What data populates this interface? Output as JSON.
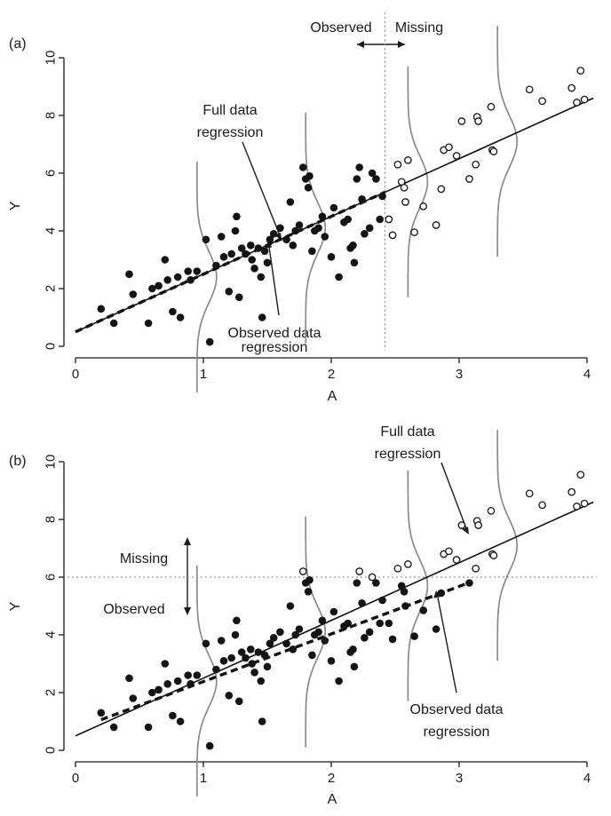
{
  "chart_data": [
    {
      "panel": "(a)",
      "type": "scatter",
      "xlabel": "A",
      "ylabel": "Y",
      "xlim": [
        0,
        4
      ],
      "ylim": [
        0,
        10
      ],
      "xticks": [
        0,
        1,
        2,
        3,
        4
      ],
      "yticks": [
        0,
        2,
        4,
        6,
        8,
        10
      ],
      "missingness": "missing when A > 2.42 (vertical cut)",
      "cutoff_A": 2.42,
      "legend_labels": {
        "left": "Observed",
        "right": "Missing"
      },
      "full_regression": {
        "intercept": 0.5,
        "slope": 2.0
      },
      "observed_regression": {
        "intercept": 0.5,
        "slope": 2.0,
        "x_range": [
          0,
          2.42
        ]
      },
      "density_curves_at_A": [
        0.95,
        1.8,
        2.6,
        3.3
      ],
      "annotations": [
        {
          "text_lines": [
            "Full data",
            "regression"
          ],
          "points_to": "full-regression"
        },
        {
          "text_lines": [
            "Observed data",
            "regression"
          ],
          "points_to": "observed-regression"
        }
      ],
      "points": [
        {
          "x": 0.2,
          "y": 1.3,
          "observed": true
        },
        {
          "x": 0.3,
          "y": 0.8,
          "observed": true
        },
        {
          "x": 0.42,
          "y": 2.5,
          "observed": true
        },
        {
          "x": 0.45,
          "y": 1.8,
          "observed": true
        },
        {
          "x": 0.57,
          "y": 0.8,
          "observed": true
        },
        {
          "x": 0.6,
          "y": 2.0,
          "observed": true
        },
        {
          "x": 0.65,
          "y": 2.1,
          "observed": true
        },
        {
          "x": 0.7,
          "y": 3.0,
          "observed": true
        },
        {
          "x": 0.72,
          "y": 2.3,
          "observed": true
        },
        {
          "x": 0.76,
          "y": 1.2,
          "observed": true
        },
        {
          "x": 0.8,
          "y": 2.4,
          "observed": true
        },
        {
          "x": 0.82,
          "y": 1.0,
          "observed": true
        },
        {
          "x": 0.88,
          "y": 2.6,
          "observed": true
        },
        {
          "x": 0.9,
          "y": 2.3,
          "observed": true
        },
        {
          "x": 0.95,
          "y": 2.6,
          "observed": true
        },
        {
          "x": 1.02,
          "y": 3.7,
          "observed": true
        },
        {
          "x": 1.05,
          "y": 0.15,
          "observed": true
        },
        {
          "x": 1.1,
          "y": 2.8,
          "observed": true
        },
        {
          "x": 1.14,
          "y": 3.8,
          "observed": true
        },
        {
          "x": 1.16,
          "y": 3.1,
          "observed": true
        },
        {
          "x": 1.2,
          "y": 1.9,
          "observed": true
        },
        {
          "x": 1.22,
          "y": 3.2,
          "observed": true
        },
        {
          "x": 1.25,
          "y": 4.0,
          "observed": true
        },
        {
          "x": 1.26,
          "y": 4.5,
          "observed": true
        },
        {
          "x": 1.28,
          "y": 1.7,
          "observed": true
        },
        {
          "x": 1.3,
          "y": 3.4,
          "observed": true
        },
        {
          "x": 1.33,
          "y": 3.2,
          "observed": true
        },
        {
          "x": 1.37,
          "y": 3.5,
          "observed": true
        },
        {
          "x": 1.38,
          "y": 3.0,
          "observed": true
        },
        {
          "x": 1.4,
          "y": 2.7,
          "observed": true
        },
        {
          "x": 1.43,
          "y": 3.4,
          "observed": true
        },
        {
          "x": 1.45,
          "y": 2.4,
          "observed": true
        },
        {
          "x": 1.46,
          "y": 1.0,
          "observed": true
        },
        {
          "x": 1.48,
          "y": 3.3,
          "observed": true
        },
        {
          "x": 1.5,
          "y": 2.9,
          "observed": true
        },
        {
          "x": 1.52,
          "y": 3.7,
          "observed": true
        },
        {
          "x": 1.55,
          "y": 3.9,
          "observed": true
        },
        {
          "x": 1.6,
          "y": 4.1,
          "observed": true
        },
        {
          "x": 1.65,
          "y": 3.7,
          "observed": true
        },
        {
          "x": 1.68,
          "y": 5.0,
          "observed": true
        },
        {
          "x": 1.7,
          "y": 3.5,
          "observed": true
        },
        {
          "x": 1.72,
          "y": 4.0,
          "observed": true
        },
        {
          "x": 1.75,
          "y": 4.2,
          "observed": true
        },
        {
          "x": 1.78,
          "y": 6.2,
          "observed": true
        },
        {
          "x": 1.8,
          "y": 5.8,
          "observed": true
        },
        {
          "x": 1.82,
          "y": 5.5,
          "observed": true
        },
        {
          "x": 1.83,
          "y": 5.9,
          "observed": true
        },
        {
          "x": 1.85,
          "y": 3.3,
          "observed": true
        },
        {
          "x": 1.87,
          "y": 4.0,
          "observed": true
        },
        {
          "x": 1.9,
          "y": 4.1,
          "observed": true
        },
        {
          "x": 1.93,
          "y": 4.5,
          "observed": true
        },
        {
          "x": 1.95,
          "y": 3.8,
          "observed": true
        },
        {
          "x": 2.0,
          "y": 3.1,
          "observed": true
        },
        {
          "x": 2.02,
          "y": 4.8,
          "observed": true
        },
        {
          "x": 2.06,
          "y": 2.4,
          "observed": true
        },
        {
          "x": 2.1,
          "y": 4.3,
          "observed": true
        },
        {
          "x": 2.13,
          "y": 4.4,
          "observed": true
        },
        {
          "x": 2.15,
          "y": 3.4,
          "observed": true
        },
        {
          "x": 2.17,
          "y": 3.5,
          "observed": true
        },
        {
          "x": 2.18,
          "y": 2.9,
          "observed": true
        },
        {
          "x": 2.2,
          "y": 5.8,
          "observed": true
        },
        {
          "x": 2.22,
          "y": 6.2,
          "observed": true
        },
        {
          "x": 2.24,
          "y": 5.1,
          "observed": true
        },
        {
          "x": 2.26,
          "y": 3.9,
          "observed": true
        },
        {
          "x": 2.3,
          "y": 4.1,
          "observed": true
        },
        {
          "x": 2.32,
          "y": 6.0,
          "observed": true
        },
        {
          "x": 2.35,
          "y": 5.8,
          "observed": true
        },
        {
          "x": 2.38,
          "y": 4.4,
          "observed": true
        },
        {
          "x": 2.4,
          "y": 5.2,
          "observed": true
        },
        {
          "x": 2.45,
          "y": 4.4,
          "observed": false
        },
        {
          "x": 2.48,
          "y": 3.85,
          "observed": false
        },
        {
          "x": 2.52,
          "y": 6.3,
          "observed": false
        },
        {
          "x": 2.55,
          "y": 5.7,
          "observed": false
        },
        {
          "x": 2.57,
          "y": 5.5,
          "observed": false
        },
        {
          "x": 2.58,
          "y": 5.0,
          "observed": false
        },
        {
          "x": 2.6,
          "y": 6.45,
          "observed": false
        },
        {
          "x": 2.65,
          "y": 3.95,
          "observed": false
        },
        {
          "x": 2.72,
          "y": 4.85,
          "observed": false
        },
        {
          "x": 2.82,
          "y": 4.2,
          "observed": false
        },
        {
          "x": 2.86,
          "y": 5.45,
          "observed": false
        },
        {
          "x": 2.88,
          "y": 6.8,
          "observed": false
        },
        {
          "x": 2.92,
          "y": 6.9,
          "observed": false
        },
        {
          "x": 2.98,
          "y": 6.6,
          "observed": false
        },
        {
          "x": 3.02,
          "y": 7.8,
          "observed": false
        },
        {
          "x": 3.08,
          "y": 5.8,
          "observed": false
        },
        {
          "x": 3.13,
          "y": 6.3,
          "observed": false
        },
        {
          "x": 3.14,
          "y": 7.95,
          "observed": false
        },
        {
          "x": 3.15,
          "y": 7.8,
          "observed": false
        },
        {
          "x": 3.25,
          "y": 8.3,
          "observed": false
        },
        {
          "x": 3.26,
          "y": 6.8,
          "observed": false
        },
        {
          "x": 3.27,
          "y": 6.75,
          "observed": false
        },
        {
          "x": 3.55,
          "y": 8.9,
          "observed": false
        },
        {
          "x": 3.65,
          "y": 8.5,
          "observed": false
        },
        {
          "x": 3.88,
          "y": 8.95,
          "observed": false
        },
        {
          "x": 3.92,
          "y": 8.45,
          "observed": false
        },
        {
          "x": 3.95,
          "y": 9.55,
          "observed": false
        },
        {
          "x": 3.98,
          "y": 8.55,
          "observed": false
        }
      ]
    },
    {
      "panel": "(b)",
      "type": "scatter",
      "xlabel": "A",
      "ylabel": "Y",
      "xlim": [
        0,
        4
      ],
      "ylim": [
        0,
        10
      ],
      "xticks": [
        0,
        1,
        2,
        3,
        4
      ],
      "yticks": [
        0,
        2,
        4,
        6,
        8,
        10
      ],
      "missingness": "missing when Y > 6 (horizontal cut)",
      "cutoff_Y": 6.0,
      "legend_labels": {
        "top": "Missing",
        "bottom": "Observed"
      },
      "full_regression": {
        "intercept": 0.5,
        "slope": 2.0
      },
      "observed_regression": {
        "intercept": 0.73,
        "slope": 1.65,
        "x_range": [
          0.2,
          3.1
        ]
      },
      "density_curves_at_A": [
        0.95,
        1.8,
        2.6,
        3.3
      ],
      "annotations": [
        {
          "text_lines": [
            "Full data",
            "regression"
          ],
          "points_to": "full-regression"
        },
        {
          "text_lines": [
            "Observed data",
            "regression"
          ],
          "points_to": "observed-regression"
        }
      ],
      "points": [
        {
          "x": 0.2,
          "y": 1.3,
          "observed": true
        },
        {
          "x": 0.3,
          "y": 0.8,
          "observed": true
        },
        {
          "x": 0.42,
          "y": 2.5,
          "observed": true
        },
        {
          "x": 0.45,
          "y": 1.8,
          "observed": true
        },
        {
          "x": 0.57,
          "y": 0.8,
          "observed": true
        },
        {
          "x": 0.6,
          "y": 2.0,
          "observed": true
        },
        {
          "x": 0.65,
          "y": 2.1,
          "observed": true
        },
        {
          "x": 0.7,
          "y": 3.0,
          "observed": true
        },
        {
          "x": 0.72,
          "y": 2.3,
          "observed": true
        },
        {
          "x": 0.76,
          "y": 1.2,
          "observed": true
        },
        {
          "x": 0.8,
          "y": 2.4,
          "observed": true
        },
        {
          "x": 0.82,
          "y": 1.0,
          "observed": true
        },
        {
          "x": 0.88,
          "y": 2.6,
          "observed": true
        },
        {
          "x": 0.9,
          "y": 2.3,
          "observed": true
        },
        {
          "x": 0.95,
          "y": 2.6,
          "observed": true
        },
        {
          "x": 1.02,
          "y": 3.7,
          "observed": true
        },
        {
          "x": 1.05,
          "y": 0.15,
          "observed": true
        },
        {
          "x": 1.1,
          "y": 2.8,
          "observed": true
        },
        {
          "x": 1.14,
          "y": 3.8,
          "observed": true
        },
        {
          "x": 1.16,
          "y": 3.1,
          "observed": true
        },
        {
          "x": 1.2,
          "y": 1.9,
          "observed": true
        },
        {
          "x": 1.22,
          "y": 3.2,
          "observed": true
        },
        {
          "x": 1.25,
          "y": 4.0,
          "observed": true
        },
        {
          "x": 1.26,
          "y": 4.5,
          "observed": true
        },
        {
          "x": 1.28,
          "y": 1.7,
          "observed": true
        },
        {
          "x": 1.3,
          "y": 3.4,
          "observed": true
        },
        {
          "x": 1.33,
          "y": 3.2,
          "observed": true
        },
        {
          "x": 1.37,
          "y": 3.5,
          "observed": true
        },
        {
          "x": 1.38,
          "y": 3.0,
          "observed": true
        },
        {
          "x": 1.4,
          "y": 2.7,
          "observed": true
        },
        {
          "x": 1.43,
          "y": 3.4,
          "observed": true
        },
        {
          "x": 1.45,
          "y": 2.4,
          "observed": true
        },
        {
          "x": 1.46,
          "y": 1.0,
          "observed": true
        },
        {
          "x": 1.48,
          "y": 3.3,
          "observed": true
        },
        {
          "x": 1.5,
          "y": 2.9,
          "observed": true
        },
        {
          "x": 1.52,
          "y": 3.7,
          "observed": true
        },
        {
          "x": 1.55,
          "y": 3.9,
          "observed": true
        },
        {
          "x": 1.6,
          "y": 4.1,
          "observed": true
        },
        {
          "x": 1.65,
          "y": 3.7,
          "observed": true
        },
        {
          "x": 1.68,
          "y": 5.0,
          "observed": true
        },
        {
          "x": 1.7,
          "y": 3.5,
          "observed": true
        },
        {
          "x": 1.72,
          "y": 4.0,
          "observed": true
        },
        {
          "x": 1.75,
          "y": 4.2,
          "observed": true
        },
        {
          "x": 1.78,
          "y": 6.2,
          "observed": false
        },
        {
          "x": 1.8,
          "y": 5.8,
          "observed": true
        },
        {
          "x": 1.82,
          "y": 5.5,
          "observed": true
        },
        {
          "x": 1.83,
          "y": 5.9,
          "observed": true
        },
        {
          "x": 1.85,
          "y": 3.3,
          "observed": true
        },
        {
          "x": 1.87,
          "y": 4.0,
          "observed": true
        },
        {
          "x": 1.9,
          "y": 4.1,
          "observed": true
        },
        {
          "x": 1.93,
          "y": 4.5,
          "observed": true
        },
        {
          "x": 1.95,
          "y": 3.8,
          "observed": true
        },
        {
          "x": 2.0,
          "y": 3.1,
          "observed": true
        },
        {
          "x": 2.02,
          "y": 4.8,
          "observed": true
        },
        {
          "x": 2.06,
          "y": 2.4,
          "observed": true
        },
        {
          "x": 2.1,
          "y": 4.3,
          "observed": true
        },
        {
          "x": 2.13,
          "y": 4.4,
          "observed": true
        },
        {
          "x": 2.15,
          "y": 3.4,
          "observed": true
        },
        {
          "x": 2.17,
          "y": 3.5,
          "observed": true
        },
        {
          "x": 2.18,
          "y": 2.9,
          "observed": true
        },
        {
          "x": 2.2,
          "y": 5.8,
          "observed": true
        },
        {
          "x": 2.22,
          "y": 6.2,
          "observed": false
        },
        {
          "x": 2.24,
          "y": 5.1,
          "observed": true
        },
        {
          "x": 2.26,
          "y": 3.9,
          "observed": true
        },
        {
          "x": 2.3,
          "y": 4.1,
          "observed": true
        },
        {
          "x": 2.32,
          "y": 6.0,
          "observed": false
        },
        {
          "x": 2.35,
          "y": 5.8,
          "observed": true
        },
        {
          "x": 2.38,
          "y": 4.4,
          "observed": true
        },
        {
          "x": 2.4,
          "y": 5.2,
          "observed": true
        },
        {
          "x": 2.45,
          "y": 4.4,
          "observed": true
        },
        {
          "x": 2.48,
          "y": 3.85,
          "observed": true
        },
        {
          "x": 2.52,
          "y": 6.3,
          "observed": false
        },
        {
          "x": 2.55,
          "y": 5.7,
          "observed": true
        },
        {
          "x": 2.57,
          "y": 5.5,
          "observed": true
        },
        {
          "x": 2.58,
          "y": 5.0,
          "observed": true
        },
        {
          "x": 2.6,
          "y": 6.45,
          "observed": false
        },
        {
          "x": 2.65,
          "y": 3.95,
          "observed": true
        },
        {
          "x": 2.72,
          "y": 4.85,
          "observed": true
        },
        {
          "x": 2.82,
          "y": 4.2,
          "observed": true
        },
        {
          "x": 2.86,
          "y": 5.45,
          "observed": true
        },
        {
          "x": 2.88,
          "y": 6.8,
          "observed": false
        },
        {
          "x": 2.92,
          "y": 6.9,
          "observed": false
        },
        {
          "x": 2.98,
          "y": 6.6,
          "observed": false
        },
        {
          "x": 3.02,
          "y": 7.8,
          "observed": false
        },
        {
          "x": 3.08,
          "y": 5.8,
          "observed": true
        },
        {
          "x": 3.13,
          "y": 6.3,
          "observed": false
        },
        {
          "x": 3.14,
          "y": 7.95,
          "observed": false
        },
        {
          "x": 3.15,
          "y": 7.8,
          "observed": false
        },
        {
          "x": 3.25,
          "y": 8.3,
          "observed": false
        },
        {
          "x": 3.26,
          "y": 6.8,
          "observed": false
        },
        {
          "x": 3.27,
          "y": 6.75,
          "observed": false
        },
        {
          "x": 3.55,
          "y": 8.9,
          "observed": false
        },
        {
          "x": 3.65,
          "y": 8.5,
          "observed": false
        },
        {
          "x": 3.88,
          "y": 8.95,
          "observed": false
        },
        {
          "x": 3.92,
          "y": 8.45,
          "observed": false
        },
        {
          "x": 3.95,
          "y": 9.55,
          "observed": false
        },
        {
          "x": 3.98,
          "y": 8.55,
          "observed": false
        }
      ]
    }
  ]
}
